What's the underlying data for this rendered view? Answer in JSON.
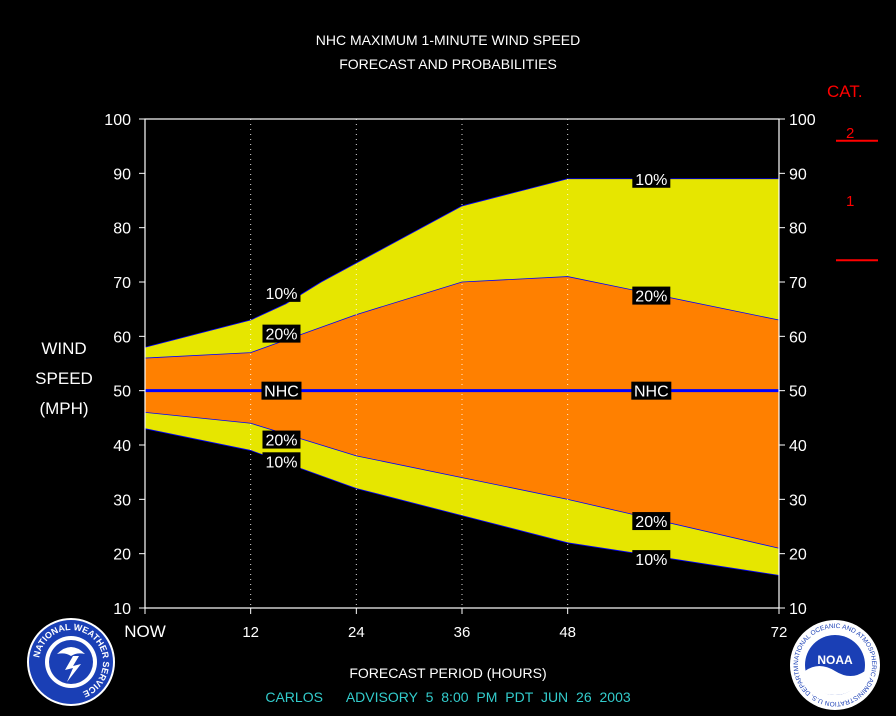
{
  "title_line1": "NHC MAXIMUM 1-MINUTE WIND SPEED",
  "title_line2": "FORECAST AND PROBABILITIES",
  "ylabel_lines": [
    "WIND",
    "SPEED",
    "(MPH)"
  ],
  "xlabel": "FORECAST PERIOD (HOURS)",
  "advisory": {
    "storm": "CARLOS",
    "label": "ADVISORY",
    "number": "5",
    "time": "8:00",
    "ampm": "PM",
    "zone": "PDT",
    "date": "JUN 26 2003"
  },
  "category_scale": {
    "heading": "CAT.",
    "labels": [
      "2",
      "1"
    ],
    "boundaries_mph": [
      74,
      96
    ],
    "color": "#ff0000"
  },
  "logos": {
    "left": {
      "name": "national-weather-service-logo",
      "text": "NATIONAL WEATHER SERVICE"
    },
    "right": {
      "name": "noaa-logo",
      "center_text": "NOAA",
      "ring_text": "NATIONAL OCEANIC AND ATMOSPHERIC ADMINISTRATION U.S. DEPARTMENT OF COMMERCE"
    }
  },
  "colors": {
    "background": "#000000",
    "band_10": "#e6e600",
    "band_20": "#ff8000",
    "nhc_line": "#0000ff",
    "advisory_text": "#33cccc",
    "text": "#ffffff"
  },
  "chart_data": {
    "type": "area",
    "xlim": [
      0,
      72
    ],
    "ylim": [
      10,
      100
    ],
    "x_ticks": [
      {
        "x": 0,
        "label": "NOW"
      },
      {
        "x": 12,
        "label": "12"
      },
      {
        "x": 24,
        "label": "24"
      },
      {
        "x": 36,
        "label": "36"
      },
      {
        "x": 48,
        "label": "48"
      },
      {
        "x": 72,
        "label": "72"
      }
    ],
    "y_ticks": [
      10,
      20,
      30,
      40,
      50,
      60,
      70,
      80,
      90,
      100
    ],
    "vertical_gridlines_x": [
      12,
      24,
      36,
      48
    ],
    "series": [
      {
        "name": "10% upper",
        "x": [
          0,
          12,
          16,
          20,
          36,
          48,
          72
        ],
        "y": [
          58,
          63,
          66,
          70,
          84,
          89,
          89
        ]
      },
      {
        "name": "20% upper",
        "x": [
          0,
          12,
          24,
          36,
          48,
          72
        ],
        "y": [
          56,
          57,
          64,
          70,
          71,
          63
        ]
      },
      {
        "name": "NHC",
        "x": [
          0,
          72
        ],
        "y": [
          50,
          50
        ]
      },
      {
        "name": "20% lower",
        "x": [
          0,
          12,
          24,
          36,
          48,
          72
        ],
        "y": [
          46,
          44,
          38,
          34,
          30,
          21
        ]
      },
      {
        "name": "10% lower",
        "x": [
          0,
          12,
          24,
          36,
          48,
          72
        ],
        "y": [
          43,
          39,
          32,
          27,
          22,
          16
        ]
      }
    ],
    "annotations": [
      {
        "text": "10%",
        "x": 15.5,
        "y": 68
      },
      {
        "text": "20%",
        "x": 15.5,
        "y": 60.5
      },
      {
        "text": "NHC",
        "x": 15.5,
        "y": 50
      },
      {
        "text": "20%",
        "x": 15.5,
        "y": 41
      },
      {
        "text": "10%",
        "x": 15.5,
        "y": 37
      },
      {
        "text": "10%",
        "x": 57.5,
        "y": 89
      },
      {
        "text": "20%",
        "x": 57.5,
        "y": 67.5
      },
      {
        "text": "NHC",
        "x": 57.5,
        "y": 50
      },
      {
        "text": "20%",
        "x": 57.5,
        "y": 26
      },
      {
        "text": "10%",
        "x": 57.5,
        "y": 19
      }
    ]
  }
}
